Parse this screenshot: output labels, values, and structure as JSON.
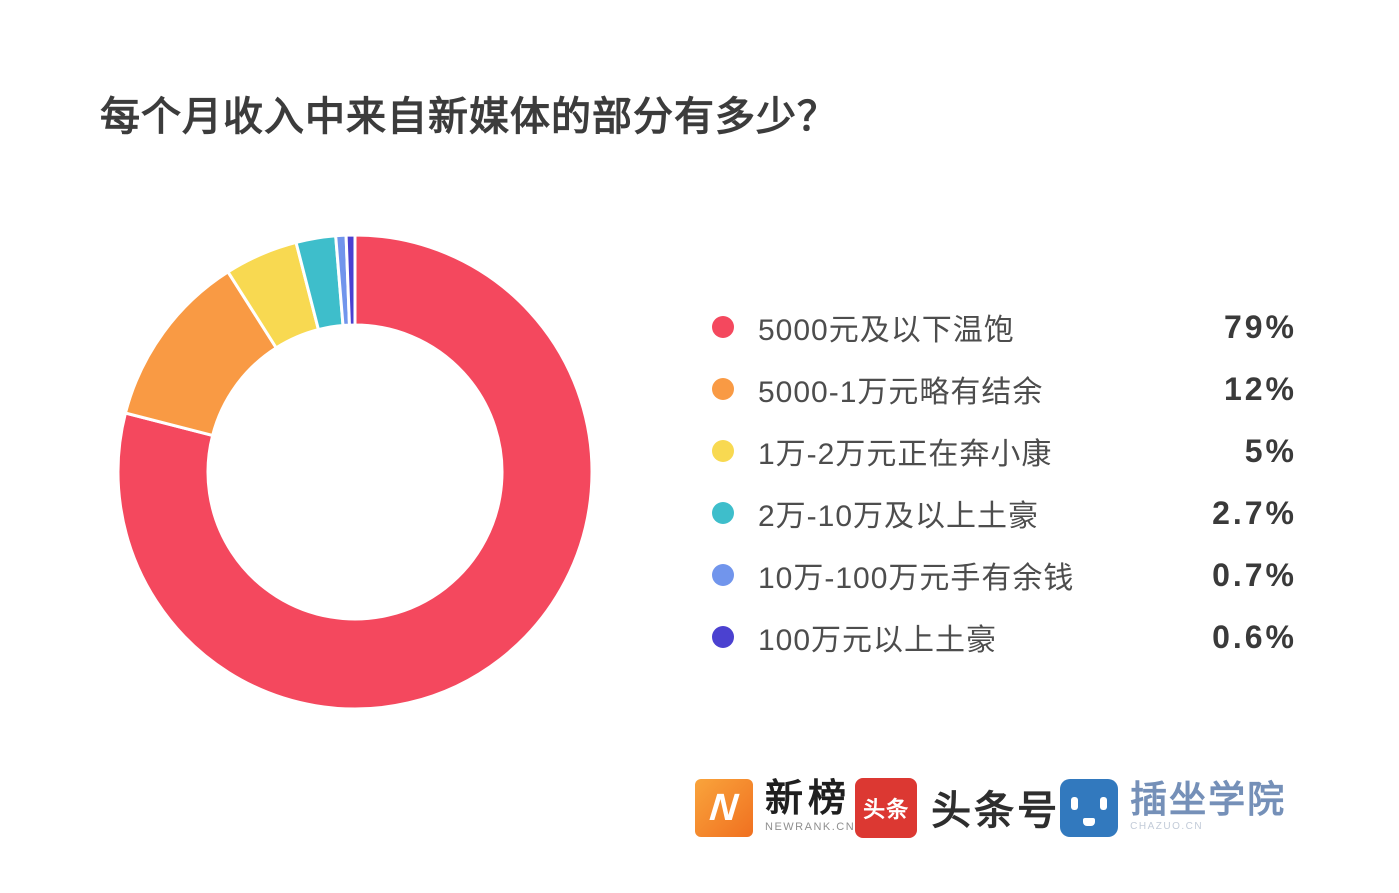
{
  "page": {
    "title": "每个月收入中来自新媒体的部分有多少？",
    "background": "#ffffff"
  },
  "chart_data": {
    "type": "pie",
    "variant": "donut",
    "title": "每个月收入中来自新媒体的部分有多少？",
    "categories": [
      "5000元及以下温饱",
      "5000-1万元略有结余",
      "1万-2万元正在奔小康",
      "2万-10万及以上土豪",
      "10万-100万元手有余钱",
      "100万元以上土豪"
    ],
    "values": [
      79,
      12,
      5,
      2.7,
      0.7,
      0.6
    ],
    "value_labels": [
      "79%",
      "12%",
      "5%",
      "2.7%",
      "0.7%",
      "0.6%"
    ],
    "unit": "%",
    "colors": [
      "#f4485e",
      "#f99a44",
      "#f8d951",
      "#3ebecb",
      "#7195ec",
      "#4b41d0"
    ],
    "start_angle_deg": 0,
    "direction": "clockwise",
    "inner_radius_ratio": 0.62,
    "slice_gap_stroke": "#ffffff",
    "legend_position": "right"
  },
  "footer": {
    "newrank": {
      "icon_letter": "N",
      "name": "新榜",
      "subtitle": "NEWRANK.CN",
      "brand_color": "#f58220"
    },
    "toutiao": {
      "icon_text": "头条",
      "name": "头条号",
      "brand_color": "#dc3832"
    },
    "chazuo": {
      "name": "插坐学院",
      "subtitle": "CHAZUO.CN",
      "brand_color": "#3279be"
    }
  }
}
